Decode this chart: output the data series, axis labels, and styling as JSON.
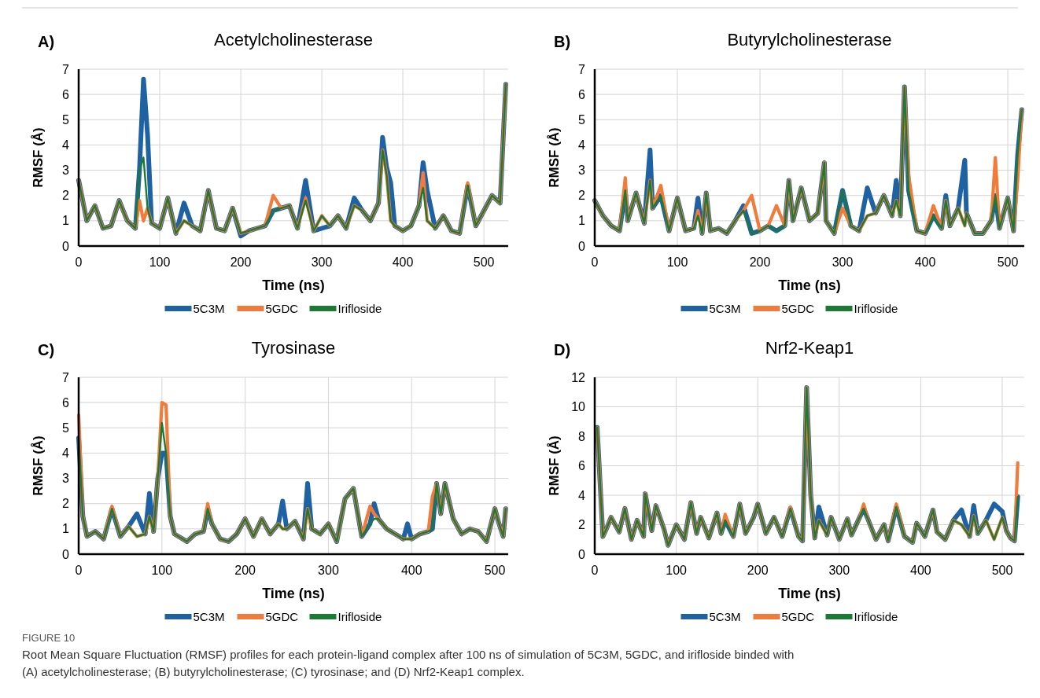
{
  "chart_data": [
    {
      "type": "line",
      "title": "Acetylcholinesterase",
      "xlabel": "Time (ns)",
      "ylabel": "RMSF (Å)",
      "annotations": [
        "A)",
        "FIGURE 10",
        "Root Mean Square Fluctuation (RMSF) profiles for each protein-ligand complex after 100 ns of simulation of 5C3M, 5GDC, and irifloside binded with",
        "(A) acetylcholinesterase; (B) butyrylcholinesterase; (C) tyrosinase; and (D) Nrf2-Keap1 complex."
      ],
      "xlim": [
        0,
        530
      ],
      "xticks": [
        0,
        100,
        200,
        300,
        400,
        500
      ],
      "ylim": [
        0,
        7
      ],
      "yticks": [
        0,
        1,
        2,
        3,
        4,
        5,
        6,
        7
      ],
      "grid": true,
      "legend": "bottom",
      "line_style": "solid",
      "marker": "none",
      "x": [
        0,
        10,
        20,
        30,
        40,
        50,
        60,
        70,
        75,
        80,
        85,
        90,
        100,
        110,
        120,
        130,
        140,
        150,
        160,
        170,
        180,
        190,
        200,
        210,
        220,
        230,
        240,
        250,
        260,
        270,
        280,
        290,
        300,
        310,
        320,
        330,
        340,
        350,
        360,
        370,
        375,
        380,
        385,
        390,
        400,
        410,
        420,
        425,
        430,
        440,
        450,
        460,
        470,
        480,
        490,
        500,
        510,
        520,
        527
      ],
      "series": [
        {
          "name": "5C3M",
          "color": "#1f62a3",
          "values": [
            2.6,
            1.0,
            1.6,
            0.7,
            0.8,
            1.8,
            1.0,
            0.7,
            3.0,
            6.6,
            4.4,
            0.9,
            0.7,
            1.9,
            0.5,
            1.7,
            0.8,
            0.6,
            2.2,
            0.7,
            0.6,
            1.5,
            0.4,
            0.6,
            0.7,
            0.8,
            1.4,
            1.5,
            1.6,
            0.7,
            2.6,
            0.6,
            0.7,
            0.8,
            1.2,
            0.7,
            1.9,
            1.4,
            1.0,
            1.7,
            4.3,
            3.1,
            2.5,
            0.8,
            0.6,
            0.8,
            1.6,
            3.3,
            2.2,
            0.7,
            1.2,
            0.6,
            0.5,
            2.4,
            0.8,
            1.4,
            2.0,
            1.7,
            6.4
          ]
        },
        {
          "name": "5GDC",
          "color": "#f07b3a",
          "values": [
            2.6,
            1.0,
            1.6,
            0.7,
            0.8,
            1.8,
            1.0,
            0.7,
            1.8,
            1.0,
            1.5,
            0.9,
            0.7,
            1.9,
            0.5,
            1.0,
            0.8,
            0.6,
            2.2,
            0.7,
            0.6,
            1.5,
            0.5,
            0.6,
            0.7,
            0.8,
            2.0,
            1.5,
            1.6,
            0.7,
            1.9,
            0.6,
            1.2,
            0.8,
            1.2,
            0.7,
            1.6,
            1.4,
            1.0,
            1.7,
            3.8,
            2.8,
            1.0,
            0.8,
            0.6,
            0.8,
            1.6,
            2.9,
            1.0,
            0.7,
            1.2,
            0.6,
            0.5,
            2.5,
            0.8,
            1.4,
            2.0,
            1.7,
            6.4
          ]
        },
        {
          "name": "Irifloside",
          "color": "#1d7a35",
          "values": [
            2.6,
            1.0,
            1.6,
            0.7,
            0.8,
            1.8,
            1.0,
            0.7,
            3.0,
            3.5,
            1.5,
            0.9,
            0.7,
            1.9,
            0.5,
            1.0,
            0.8,
            0.6,
            2.2,
            0.7,
            0.6,
            1.5,
            0.5,
            0.6,
            0.7,
            0.8,
            1.4,
            1.5,
            1.6,
            0.7,
            1.8,
            0.6,
            1.2,
            0.8,
            1.2,
            0.7,
            1.6,
            1.4,
            1.0,
            1.7,
            3.8,
            2.8,
            1.0,
            0.8,
            0.6,
            0.8,
            1.6,
            2.3,
            1.0,
            0.7,
            1.2,
            0.6,
            0.5,
            2.4,
            0.8,
            1.4,
            2.0,
            1.7,
            6.4
          ]
        }
      ]
    },
    {
      "type": "line",
      "title": "Butyrylcholinesterase",
      "xlabel": "Time (ns)",
      "ylabel": "RMSF (Å)",
      "annotations": [
        "B)"
      ],
      "xlim": [
        0,
        520
      ],
      "xticks": [
        0,
        100,
        200,
        300,
        400,
        500
      ],
      "ylim": [
        0,
        7
      ],
      "yticks": [
        0,
        1,
        2,
        3,
        4,
        5,
        6,
        7
      ],
      "grid": true,
      "legend": "bottom",
      "line_style": "solid",
      "marker": "none",
      "x": [
        0,
        10,
        20,
        30,
        37,
        40,
        50,
        60,
        67,
        70,
        80,
        90,
        100,
        110,
        120,
        125,
        130,
        135,
        140,
        150,
        160,
        170,
        180,
        190,
        200,
        210,
        220,
        230,
        235,
        240,
        250,
        260,
        270,
        278,
        280,
        290,
        300,
        310,
        320,
        330,
        340,
        350,
        360,
        365,
        370,
        375,
        380,
        390,
        400,
        410,
        420,
        425,
        430,
        440,
        448,
        450,
        460,
        470,
        480,
        485,
        490,
        500,
        507,
        512,
        517
      ],
      "series": [
        {
          "name": "5C3M",
          "color": "#1f62a3",
          "values": [
            1.8,
            1.2,
            0.8,
            0.6,
            2.2,
            1.0,
            2.1,
            0.9,
            3.8,
            1.5,
            2.0,
            0.6,
            1.9,
            0.6,
            0.7,
            1.9,
            0.5,
            2.1,
            0.6,
            0.7,
            0.5,
            1.0,
            1.6,
            0.5,
            0.6,
            0.8,
            0.6,
            0.8,
            2.6,
            1.0,
            2.3,
            1.0,
            1.3,
            3.3,
            1.0,
            0.5,
            2.2,
            0.8,
            0.6,
            2.3,
            1.3,
            2.0,
            1.2,
            2.6,
            1.2,
            6.3,
            2.2,
            0.6,
            0.5,
            1.2,
            0.7,
            2.0,
            0.8,
            1.5,
            3.4,
            1.3,
            0.5,
            0.5,
            1.0,
            2.0,
            0.7,
            1.9,
            0.6,
            3.6,
            5.4
          ]
        },
        {
          "name": "5GDC",
          "color": "#f07b3a",
          "values": [
            1.8,
            1.2,
            0.8,
            0.6,
            2.7,
            1.0,
            2.1,
            0.9,
            2.6,
            1.5,
            2.4,
            0.6,
            1.9,
            0.6,
            0.7,
            1.4,
            0.5,
            2.1,
            0.6,
            0.7,
            0.5,
            1.0,
            1.4,
            2.0,
            0.6,
            0.8,
            1.6,
            0.8,
            2.6,
            1.0,
            2.3,
            1.0,
            1.3,
            3.3,
            1.0,
            0.5,
            1.5,
            0.8,
            0.6,
            1.2,
            1.3,
            2.0,
            1.2,
            1.8,
            1.2,
            6.3,
            2.8,
            0.6,
            0.5,
            1.6,
            0.7,
            1.8,
            0.8,
            1.5,
            0.8,
            1.3,
            0.5,
            0.5,
            1.0,
            3.5,
            0.7,
            1.9,
            0.6,
            2.6,
            5.4
          ]
        },
        {
          "name": "Irifloside",
          "color": "#1d7a35",
          "values": [
            1.8,
            1.2,
            0.8,
            0.6,
            2.2,
            1.0,
            2.1,
            0.9,
            2.6,
            1.5,
            2.0,
            0.6,
            1.9,
            0.6,
            0.7,
            1.2,
            0.5,
            2.1,
            0.6,
            0.7,
            0.5,
            1.0,
            1.4,
            0.5,
            0.6,
            0.8,
            0.6,
            0.8,
            2.6,
            1.0,
            2.3,
            1.0,
            1.3,
            3.3,
            1.0,
            0.5,
            2.2,
            0.8,
            0.6,
            1.2,
            1.3,
            2.0,
            1.2,
            1.8,
            1.2,
            6.3,
            2.2,
            0.6,
            0.5,
            1.2,
            0.7,
            1.8,
            0.8,
            1.5,
            0.8,
            1.3,
            0.5,
            0.5,
            1.0,
            2.0,
            0.7,
            1.9,
            0.6,
            3.6,
            5.4
          ]
        }
      ]
    },
    {
      "type": "line",
      "title": "Tyrosinase",
      "xlabel": "Time (ns)",
      "ylabel": "RMSF (Å)",
      "annotations": [
        "C)"
      ],
      "xlim": [
        0,
        516
      ],
      "xticks": [
        0,
        100,
        200,
        300,
        400,
        500
      ],
      "ylim": [
        0,
        7
      ],
      "yticks": [
        0,
        1,
        2,
        3,
        4,
        5,
        6,
        7
      ],
      "grid": true,
      "legend": "bottom",
      "line_style": "solid",
      "marker": "none",
      "x": [
        0,
        5,
        10,
        20,
        30,
        40,
        50,
        60,
        70,
        80,
        85,
        90,
        95,
        100,
        105,
        110,
        115,
        120,
        130,
        140,
        150,
        155,
        160,
        170,
        180,
        190,
        200,
        210,
        220,
        230,
        240,
        245,
        250,
        260,
        270,
        275,
        280,
        290,
        300,
        310,
        320,
        330,
        340,
        350,
        355,
        360,
        370,
        380,
        390,
        395,
        400,
        410,
        420,
        425,
        430,
        435,
        440,
        450,
        460,
        470,
        480,
        490,
        500,
        505,
        510,
        513
      ],
      "series": [
        {
          "name": "5C3M",
          "color": "#1f62a3",
          "values": [
            4.6,
            1.5,
            0.7,
            0.9,
            0.6,
            1.8,
            0.7,
            1.1,
            1.6,
            0.8,
            2.4,
            0.9,
            3.0,
            4.0,
            4.0,
            1.5,
            0.8,
            0.7,
            0.5,
            0.8,
            0.9,
            1.8,
            1.2,
            0.6,
            0.5,
            0.8,
            1.4,
            0.7,
            1.4,
            0.8,
            1.2,
            2.1,
            1.0,
            1.3,
            0.6,
            2.8,
            1.0,
            0.8,
            1.2,
            0.5,
            2.2,
            2.6,
            0.7,
            1.2,
            2.0,
            1.4,
            1.0,
            0.8,
            0.6,
            1.2,
            0.6,
            0.8,
            0.9,
            1.0,
            2.8,
            1.6,
            2.8,
            1.4,
            0.8,
            1.0,
            0.9,
            0.5,
            1.8,
            1.2,
            0.7,
            1.8
          ]
        },
        {
          "name": "5GDC",
          "color": "#f07b3a",
          "values": [
            5.5,
            1.5,
            0.7,
            0.9,
            0.6,
            1.9,
            0.7,
            1.1,
            0.7,
            0.8,
            1.5,
            0.9,
            3.0,
            6.0,
            5.9,
            1.5,
            0.8,
            0.7,
            0.5,
            0.8,
            0.9,
            2.0,
            1.2,
            0.6,
            0.5,
            0.8,
            1.4,
            0.7,
            1.4,
            0.8,
            1.2,
            1.0,
            1.0,
            1.3,
            0.6,
            1.8,
            1.0,
            0.8,
            1.2,
            0.5,
            2.2,
            2.6,
            0.7,
            1.9,
            1.6,
            1.4,
            1.0,
            0.8,
            0.6,
            0.6,
            0.6,
            0.8,
            0.9,
            2.3,
            2.8,
            1.6,
            2.8,
            1.4,
            0.8,
            1.0,
            0.9,
            0.5,
            1.8,
            1.2,
            0.7,
            1.8
          ]
        },
        {
          "name": "Irifloside",
          "color": "#1d7a35",
          "values": [
            4.6,
            1.5,
            0.7,
            0.9,
            0.6,
            1.8,
            0.7,
            1.1,
            0.7,
            0.8,
            1.5,
            0.9,
            3.0,
            5.2,
            4.0,
            1.5,
            0.8,
            0.7,
            0.5,
            0.8,
            0.9,
            1.8,
            1.2,
            0.6,
            0.5,
            0.8,
            1.4,
            0.7,
            1.4,
            0.8,
            1.2,
            1.0,
            1.0,
            1.3,
            0.6,
            1.8,
            1.0,
            0.8,
            1.2,
            0.5,
            2.2,
            2.6,
            0.7,
            1.2,
            1.4,
            1.4,
            1.0,
            0.8,
            0.6,
            0.6,
            0.6,
            0.8,
            0.9,
            1.0,
            2.8,
            1.6,
            2.8,
            1.4,
            0.8,
            1.0,
            0.9,
            0.5,
            1.8,
            1.2,
            0.7,
            1.8
          ]
        }
      ]
    },
    {
      "type": "line",
      "title": "Nrf2-Keap1",
      "xlabel": "Time (ns)",
      "ylabel": "RMSF (Å)",
      "annotations": [
        "D)"
      ],
      "xlim": [
        0,
        527
      ],
      "xticks": [
        0,
        100,
        200,
        300,
        400,
        500
      ],
      "ylim": [
        0,
        12
      ],
      "yticks": [
        0,
        2,
        4,
        6,
        8,
        10,
        12
      ],
      "grid": true,
      "legend": "bottom",
      "line_style": "solid",
      "marker": "none",
      "x": [
        3,
        10,
        15,
        20,
        30,
        37,
        45,
        52,
        60,
        62,
        70,
        75,
        85,
        90,
        100,
        110,
        118,
        125,
        130,
        140,
        150,
        155,
        160,
        170,
        178,
        185,
        195,
        200,
        210,
        220,
        230,
        240,
        250,
        255,
        260,
        265,
        270,
        275,
        285,
        290,
        300,
        310,
        315,
        325,
        330,
        335,
        345,
        355,
        360,
        370,
        380,
        390,
        395,
        405,
        415,
        420,
        430,
        440,
        450,
        460,
        465,
        470,
        480,
        490,
        500,
        505,
        510,
        515,
        519
      ],
      "series": [
        {
          "name": "5C3M",
          "color": "#1f62a3",
          "values": [
            8.6,
            1.2,
            1.8,
            2.5,
            1.5,
            3.1,
            1.0,
            2.3,
            1.2,
            4.1,
            1.6,
            3.3,
            1.7,
            0.6,
            2.0,
            1.0,
            3.5,
            1.4,
            2.5,
            1.1,
            2.8,
            1.4,
            2.3,
            1.2,
            3.4,
            1.4,
            2.5,
            3.4,
            1.4,
            2.5,
            1.2,
            3.1,
            1.2,
            0.9,
            11.3,
            4.0,
            1.1,
            3.2,
            1.3,
            2.5,
            1.0,
            2.4,
            1.3,
            2.5,
            3.1,
            2.4,
            1.0,
            2.0,
            0.9,
            3.2,
            1.2,
            0.8,
            2.1,
            1.2,
            3.0,
            1.5,
            1.0,
            2.3,
            3.0,
            1.2,
            3.3,
            1.4,
            2.3,
            3.4,
            2.9,
            1.6,
            1.1,
            0.9,
            3.9
          ]
        },
        {
          "name": "5GDC",
          "color": "#f07b3a",
          "values": [
            8.6,
            1.2,
            1.8,
            2.5,
            1.5,
            3.1,
            1.0,
            2.3,
            1.2,
            4.1,
            1.6,
            3.3,
            1.7,
            0.6,
            2.0,
            1.0,
            3.5,
            1.4,
            2.5,
            1.1,
            2.8,
            1.4,
            2.7,
            1.2,
            3.4,
            1.4,
            2.5,
            3.4,
            1.4,
            2.5,
            1.2,
            3.2,
            1.2,
            0.9,
            11.3,
            4.0,
            1.1,
            2.3,
            1.3,
            2.5,
            1.0,
            2.4,
            1.3,
            2.5,
            3.4,
            2.4,
            1.0,
            2.0,
            0.9,
            3.4,
            1.2,
            0.8,
            2.1,
            1.2,
            3.0,
            1.5,
            1.0,
            2.3,
            2.0,
            1.2,
            2.6,
            1.4,
            2.3,
            1.0,
            2.5,
            1.6,
            1.1,
            0.9,
            6.2
          ]
        },
        {
          "name": "Irifloside",
          "color": "#1d7a35",
          "values": [
            8.6,
            1.2,
            1.8,
            2.5,
            1.5,
            3.1,
            1.0,
            2.3,
            1.2,
            4.1,
            1.6,
            3.3,
            1.7,
            0.6,
            2.0,
            1.0,
            3.5,
            1.4,
            2.5,
            1.1,
            2.8,
            1.4,
            2.3,
            1.2,
            3.4,
            1.4,
            2.5,
            3.4,
            1.4,
            2.5,
            1.2,
            3.1,
            1.2,
            0.9,
            11.3,
            4.0,
            1.1,
            2.3,
            1.3,
            2.5,
            1.0,
            2.4,
            1.3,
            2.5,
            3.1,
            2.4,
            1.0,
            2.0,
            0.9,
            3.2,
            1.2,
            0.8,
            2.1,
            1.2,
            3.0,
            1.5,
            1.0,
            2.3,
            2.0,
            1.2,
            2.6,
            1.4,
            2.3,
            1.0,
            2.5,
            1.6,
            1.1,
            0.9,
            3.9
          ]
        }
      ]
    }
  ]
}
